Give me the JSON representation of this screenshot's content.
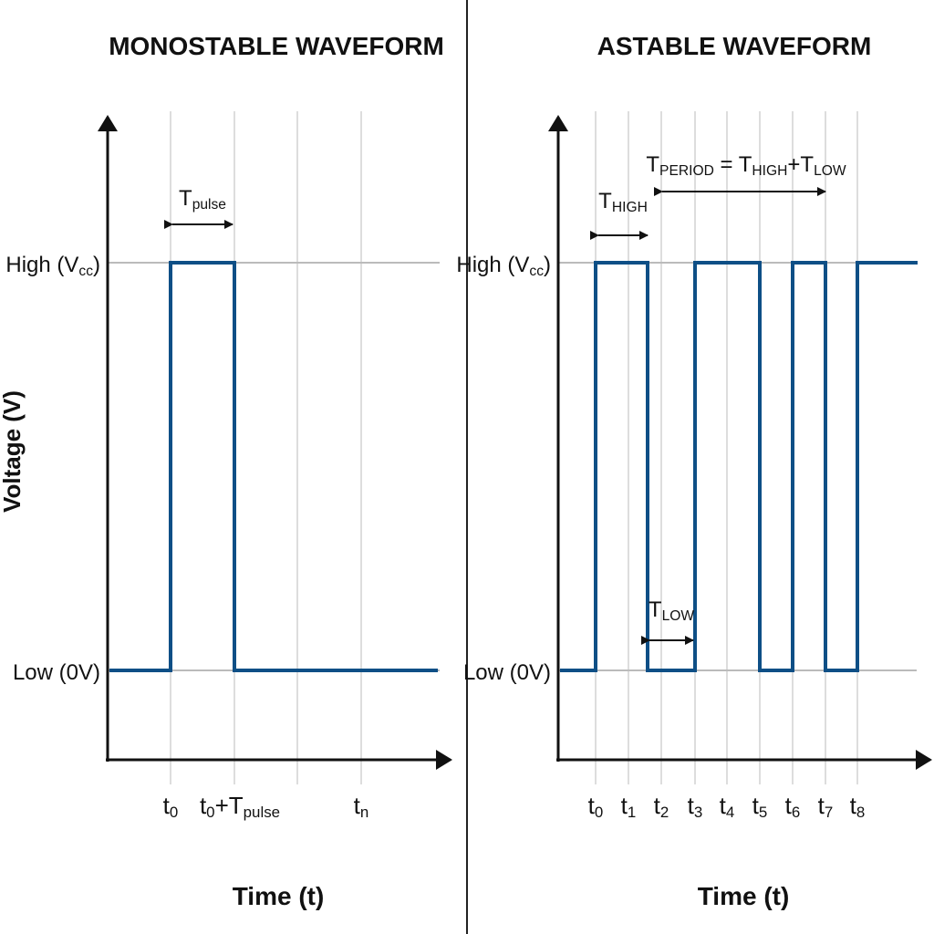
{
  "y_axis_label": "Voltage (V)",
  "monostable": {
    "title": "MONOSTABLE WAVEFORM",
    "high_label": [
      {
        "text": "High (V"
      },
      {
        "sub": "cc"
      },
      {
        "text": ")"
      }
    ],
    "low_label": "Low (0V)",
    "pulse_label": [
      {
        "text": "T"
      },
      {
        "sub": "pulse"
      }
    ],
    "time_labels": [
      [
        {
          "text": "t"
        },
        {
          "sub": "0"
        }
      ],
      [
        {
          "text": "t"
        },
        {
          "sub": "0"
        },
        {
          "text": "+T"
        },
        {
          "sub": "pulse"
        }
      ],
      [
        {
          "text": "t"
        },
        {
          "sub": "n"
        }
      ]
    ],
    "x_axis_label": "Time (t)"
  },
  "astable": {
    "title": "ASTABLE WAVEFORM",
    "high_label": [
      {
        "text": "High (V"
      },
      {
        "sub": "cc"
      },
      {
        "text": ")"
      }
    ],
    "low_label": "Low (0V)",
    "t_period_label": [
      {
        "text": "T"
      },
      {
        "sub": "PERIOD"
      },
      {
        "text": " = T"
      },
      {
        "sub": "HIGH"
      },
      {
        "text": "+T"
      },
      {
        "sub": "LOW"
      }
    ],
    "t_high_label": [
      {
        "text": "T"
      },
      {
        "sub": "HIGH"
      }
    ],
    "t_low_label": [
      {
        "text": "T"
      },
      {
        "sub": "LOW"
      }
    ],
    "time_labels": [
      [
        {
          "text": "t"
        },
        {
          "sub": "0"
        }
      ],
      [
        {
          "text": "t"
        },
        {
          "sub": "1"
        }
      ],
      [
        {
          "text": "t"
        },
        {
          "sub": "2"
        }
      ],
      [
        {
          "text": "t"
        },
        {
          "sub": "3"
        }
      ],
      [
        {
          "text": "t"
        },
        {
          "sub": "4"
        }
      ],
      [
        {
          "text": "t"
        },
        {
          "sub": "5"
        }
      ],
      [
        {
          "text": "t"
        },
        {
          "sub": "6"
        }
      ],
      [
        {
          "text": "t"
        },
        {
          "sub": "7"
        }
      ],
      [
        {
          "text": "t"
        },
        {
          "sub": "8"
        }
      ]
    ],
    "x_axis_label": "Time (t)"
  }
}
